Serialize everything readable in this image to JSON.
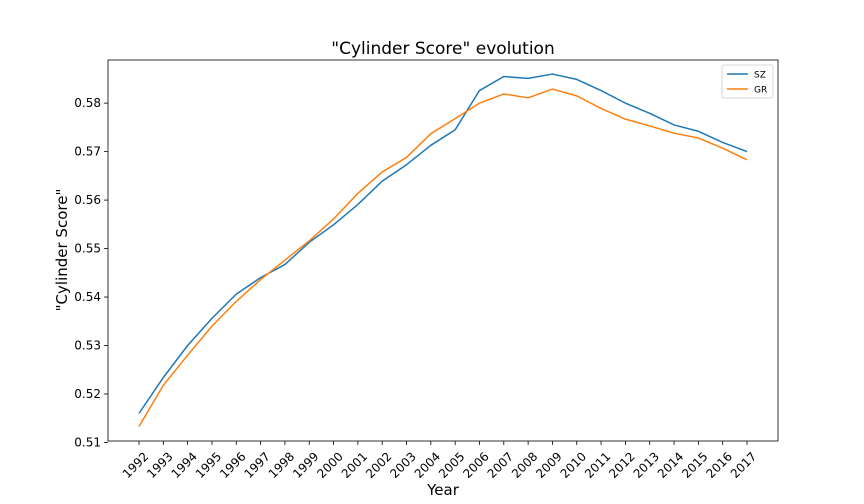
{
  "chart_data": {
    "type": "line",
    "title": "\"Cylinder Score\" evolution",
    "xlabel": "Year",
    "ylabel": "\"Cylinder Score\"",
    "x": [
      "1992",
      "1993",
      "1994",
      "1995",
      "1996",
      "1997",
      "1998",
      "1999",
      "2000",
      "2001",
      "2002",
      "2003",
      "2004",
      "2005",
      "2006",
      "2007",
      "2008",
      "2009",
      "2010",
      "2011",
      "2012",
      "2013",
      "2014",
      "2015",
      "2016",
      "2017"
    ],
    "yticks": [
      0.51,
      0.52,
      0.53,
      0.54,
      0.55,
      0.56,
      0.57,
      0.58
    ],
    "ytick_labels": [
      "0.51",
      "0.52",
      "0.53",
      "0.54",
      "0.55",
      "0.56",
      "0.57",
      "0.58"
    ],
    "ylim": [
      0.5103,
      0.5889
    ],
    "grid": false,
    "legend_position": "top-right",
    "series": [
      {
        "name": "SZ",
        "color": "#1f77b4",
        "values": [
          0.516,
          0.5234,
          0.53,
          0.5356,
          0.5406,
          0.544,
          0.5467,
          0.5513,
          0.5549,
          0.5591,
          0.5639,
          0.5673,
          0.5713,
          0.5745,
          0.5826,
          0.5855,
          0.5851,
          0.586,
          0.5849,
          0.5826,
          0.58,
          0.5779,
          0.5755,
          0.5742,
          0.5719,
          0.57
        ]
      },
      {
        "name": "GR",
        "color": "#ff7f0e",
        "values": [
          0.5133,
          0.5218,
          0.528,
          0.534,
          0.5391,
          0.5436,
          0.5476,
          0.5516,
          0.5561,
          0.5614,
          0.5658,
          0.5688,
          0.5737,
          0.5768,
          0.58,
          0.5819,
          0.5811,
          0.5829,
          0.5815,
          0.5789,
          0.5767,
          0.5753,
          0.5738,
          0.5728,
          0.5707,
          0.5683
        ]
      }
    ]
  }
}
